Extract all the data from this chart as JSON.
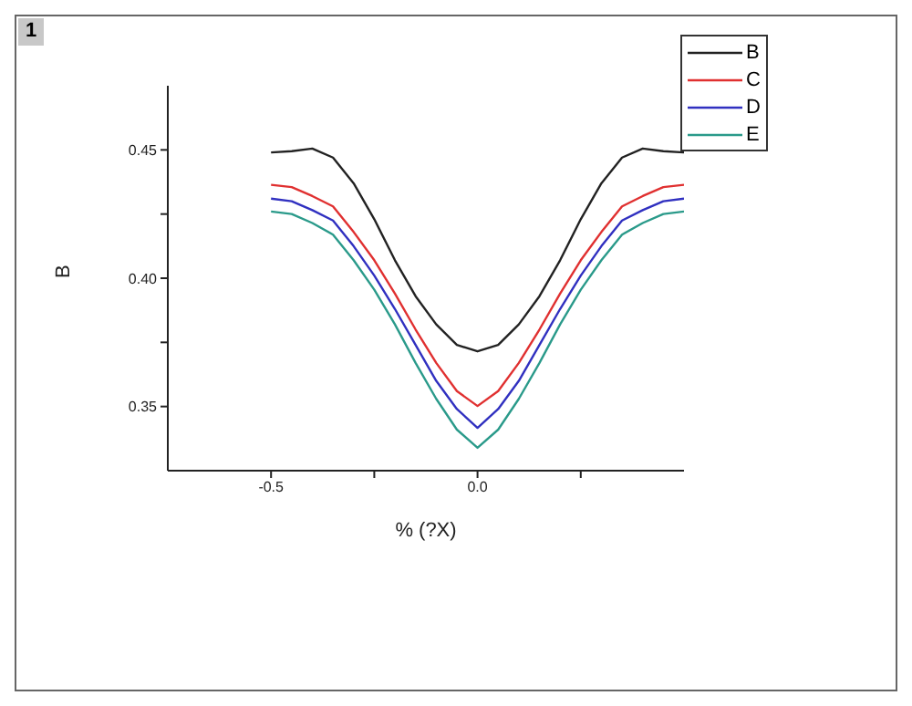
{
  "chart_data": {
    "type": "line",
    "xlabel": "% (?X)",
    "ylabel": "B",
    "annotations": [
      "1"
    ],
    "x": [
      -0.5,
      -0.45,
      -0.4,
      -0.35,
      -0.3,
      -0.25,
      -0.2,
      -0.15,
      -0.1,
      -0.05,
      0,
      0.05,
      0.1,
      0.15,
      0.2,
      0.25,
      0.3,
      0.35,
      0.4,
      0.45,
      0.5
    ],
    "series": [
      {
        "name": "B",
        "color": "#222222",
        "values": [
          0.449,
          0.4495,
          0.4505,
          0.447,
          0.437,
          0.423,
          0.407,
          0.393,
          0.382,
          0.374,
          0.3715,
          0.374,
          0.382,
          0.393,
          0.407,
          0.423,
          0.437,
          0.447,
          0.4505,
          0.4495,
          0.449
        ]
      },
      {
        "name": "C",
        "color": "#e03030",
        "values": [
          0.4364,
          0.4355,
          0.432,
          0.428,
          0.418,
          0.407,
          0.394,
          0.38,
          0.367,
          0.356,
          0.3502,
          0.356,
          0.367,
          0.38,
          0.394,
          0.407,
          0.418,
          0.428,
          0.432,
          0.4355,
          0.4364
        ]
      },
      {
        "name": "D",
        "color": "#3030c0",
        "values": [
          0.431,
          0.43,
          0.4265,
          0.4225,
          0.4125,
          0.401,
          0.388,
          0.374,
          0.36,
          0.349,
          0.3417,
          0.349,
          0.36,
          0.374,
          0.388,
          0.401,
          0.4125,
          0.4225,
          0.4265,
          0.43,
          0.431
        ]
      },
      {
        "name": "E",
        "color": "#2a9a8a",
        "values": [
          0.426,
          0.425,
          0.4215,
          0.417,
          0.407,
          0.3955,
          0.382,
          0.367,
          0.353,
          0.341,
          0.3339,
          0.341,
          0.353,
          0.367,
          0.382,
          0.3955,
          0.407,
          0.417,
          0.4215,
          0.425,
          0.426
        ]
      }
    ],
    "xlim": [
      -0.75,
      0.5
    ],
    "xticks": [
      -0.5,
      {
        "value": -0.25,
        "label": null
      },
      {
        "value": 0,
        "label": "0.0"
      },
      {
        "value": 0.25,
        "label": null
      }
    ],
    "ylim": [
      0.325,
      0.475
    ],
    "yticks": [
      0.35,
      {
        "value": 0.375,
        "label": null
      },
      {
        "value": 0.4,
        "label": "0.40"
      },
      {
        "value": 0.425,
        "label": null
      },
      0.45
    ],
    "legend": "top right",
    "grid": false,
    "marker": "none",
    "line_style": "solid"
  }
}
